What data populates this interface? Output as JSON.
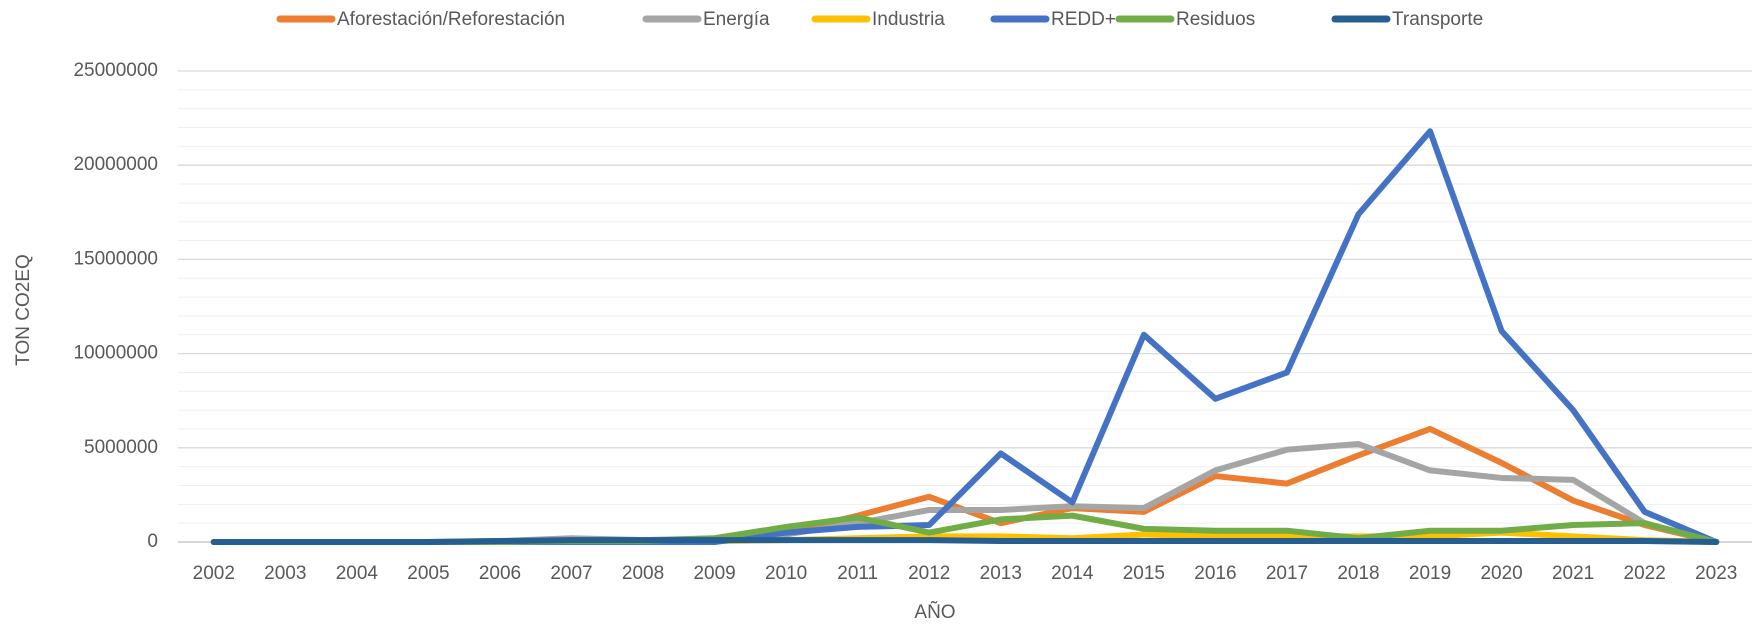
{
  "chart_data": {
    "type": "line",
    "x_label": "AÑO",
    "y_label": "TON CO2EQ",
    "categories": [
      "2002",
      "2003",
      "2004",
      "2005",
      "2006",
      "2007",
      "2008",
      "2009",
      "2010",
      "2011",
      "2012",
      "2013",
      "2014",
      "2015",
      "2016",
      "2017",
      "2018",
      "2019",
      "2020",
      "2021",
      "2022",
      "2023"
    ],
    "series": [
      {
        "name": "Aforestación/Reforestación",
        "color": "#ed7d31",
        "values": [
          0,
          0,
          0,
          0,
          0,
          50000,
          50000,
          100000,
          500000,
          1400000,
          2400000,
          1000000,
          1800000,
          1600000,
          3500000,
          3100000,
          4600000,
          6000000,
          4200000,
          2200000,
          900000,
          0
        ]
      },
      {
        "name": "Energía",
        "color": "#a5a5a5",
        "values": [
          0,
          0,
          0,
          0,
          50000,
          200000,
          100000,
          200000,
          400000,
          1000000,
          1700000,
          1700000,
          1900000,
          1800000,
          3800000,
          4900000,
          5200000,
          3800000,
          3400000,
          3300000,
          1000000,
          0
        ]
      },
      {
        "name": "Industria",
        "color": "#ffc000",
        "values": [
          0,
          0,
          0,
          0,
          0,
          0,
          0,
          50000,
          100000,
          200000,
          300000,
          300000,
          200000,
          400000,
          300000,
          300000,
          300000,
          300000,
          500000,
          300000,
          100000,
          0
        ]
      },
      {
        "name": "REDD+",
        "color": "#4472c4",
        "values": [
          0,
          0,
          0,
          0,
          0,
          0,
          0,
          0,
          500000,
          800000,
          900000,
          4700000,
          2100000,
          11000000,
          7600000,
          9000000,
          17400000,
          21800000,
          11200000,
          7000000,
          1600000,
          0
        ]
      },
      {
        "name": "Residuos",
        "color": "#70ad47",
        "values": [
          0,
          0,
          0,
          0,
          0,
          50000,
          50000,
          200000,
          800000,
          1300000,
          500000,
          1200000,
          1400000,
          700000,
          600000,
          600000,
          200000,
          600000,
          600000,
          900000,
          1000000,
          0
        ]
      },
      {
        "name": "Transporte",
        "color": "#255e91",
        "values": [
          0,
          0,
          0,
          0,
          50000,
          100000,
          100000,
          100000,
          100000,
          100000,
          100000,
          50000,
          50000,
          50000,
          50000,
          50000,
          50000,
          50000,
          50000,
          50000,
          50000,
          0
        ]
      }
    ],
    "ylim": [
      0,
      25000000
    ],
    "yticks": [
      0,
      5000000,
      10000000,
      15000000,
      20000000,
      25000000
    ],
    "grid": true,
    "legend": "top"
  }
}
